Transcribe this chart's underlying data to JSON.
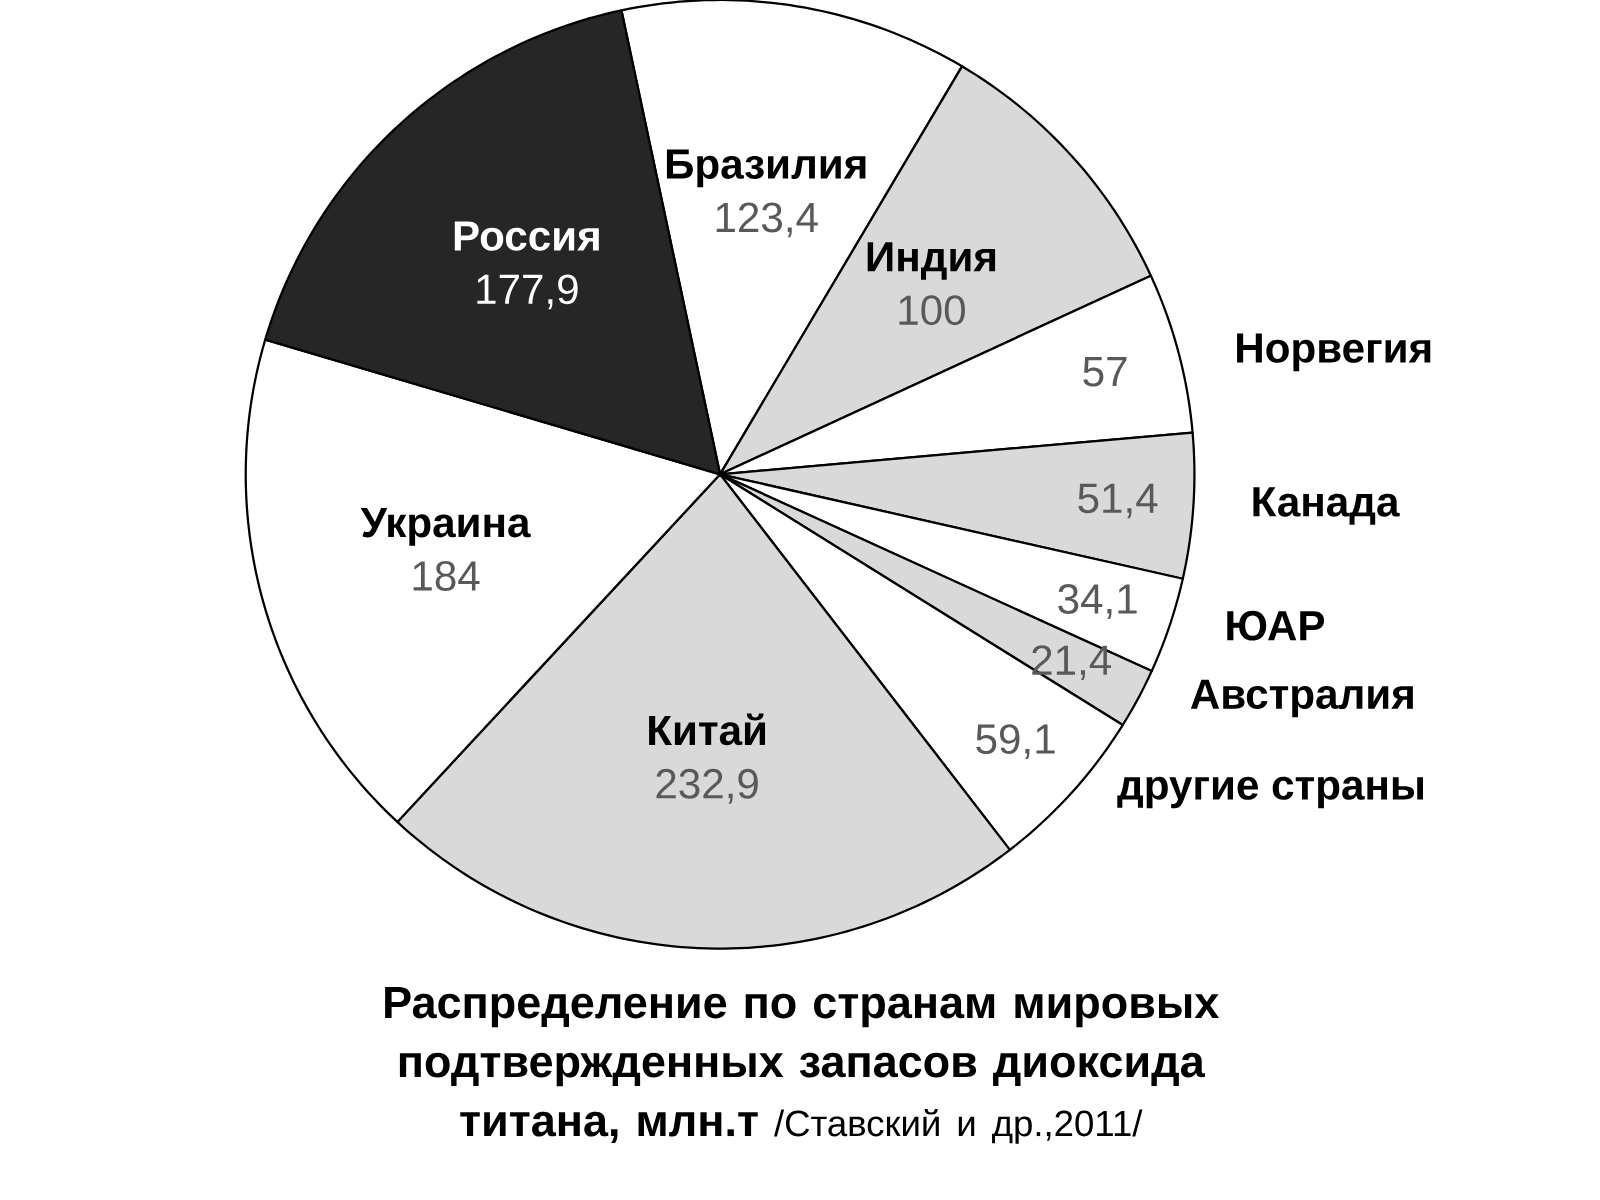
{
  "chart_data": {
    "type": "pie",
    "title": "Распределение по странам мировых подтвержденных запасов диоксида титана, млн.т",
    "annotations": [
      "/Ставский и др.,2011/"
    ],
    "categories": [
      "Бразилия",
      "Индия",
      "Норвегия",
      "Канада",
      "ЮАР",
      "Австралия",
      "другие страны",
      "Китай",
      "Украина",
      "Россия"
    ],
    "values": [
      123.4,
      100,
      57,
      51.4,
      34.1,
      21.4,
      59.1,
      232.9,
      184,
      177.9
    ],
    "value_labels": [
      "123,4",
      "100",
      "57",
      "51,4",
      "34,1",
      "21,4",
      "59,1",
      "232,9",
      "184",
      "177,9"
    ],
    "colors": [
      "#ffffff",
      "#d9d9d9",
      "#ffffff",
      "#d9d9d9",
      "#ffffff",
      "#d9d9d9",
      "#ffffff",
      "#d9d9d9",
      "#ffffff",
      "#262626"
    ]
  }
}
